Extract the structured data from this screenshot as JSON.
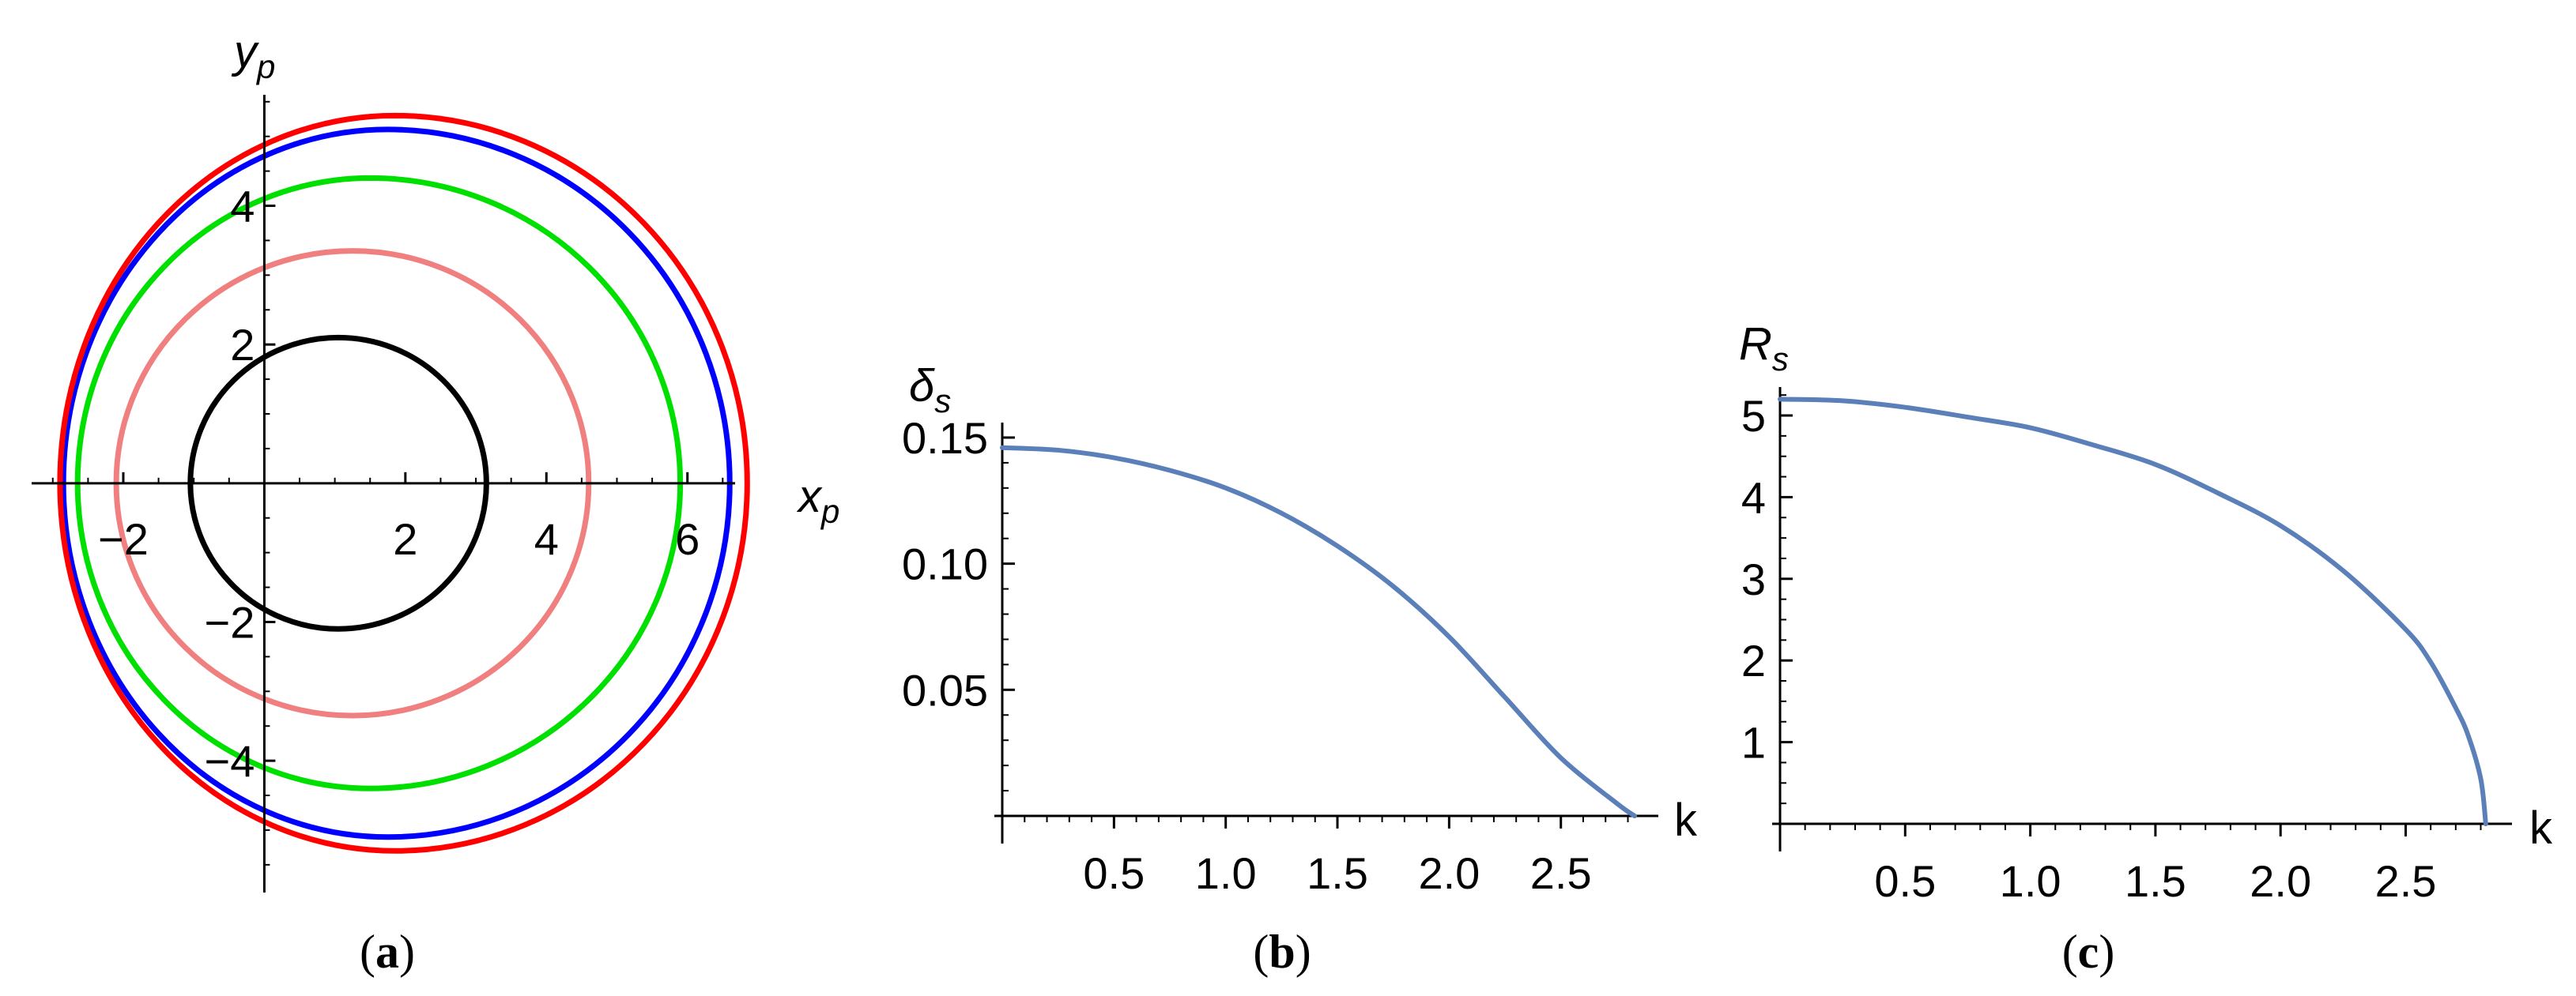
{
  "chart_data": [
    {
      "panel": "a",
      "type": "line",
      "caption": "(a)",
      "xlabel": "x",
      "xlabel_sub": "p",
      "ylabel": "y",
      "ylabel_sub": "p",
      "xlim": [
        -3.3,
        6.9
      ],
      "ylim": [
        -5.9,
        5.6
      ],
      "x_ticks": [
        {
          "v": -2,
          "label": "−2"
        },
        {
          "v": 2,
          "label": "2"
        },
        {
          "v": 4,
          "label": "4"
        },
        {
          "v": 6,
          "label": "6"
        }
      ],
      "y_ticks": [
        {
          "v": -4,
          "label": "−4"
        },
        {
          "v": -2,
          "label": "−2"
        },
        {
          "v": 2,
          "label": "2"
        },
        {
          "v": 4,
          "label": "4"
        }
      ],
      "series": [
        {
          "color": "#000000",
          "cx": 1.05,
          "r": 2.1,
          "x_left": -1.05,
          "x_right": 3.15
        },
        {
          "color": "#f08080",
          "cx": 1.25,
          "r": 3.35,
          "x_left": -2.1,
          "x_right": 4.6
        },
        {
          "color": "#00e000",
          "cx": 1.5,
          "r": 4.4,
          "x_left": -2.65,
          "x_right": 5.9
        },
        {
          "color": "#0000ff",
          "cx": 1.75,
          "r": 5.1,
          "x_left": -2.85,
          "x_right": 6.6
        },
        {
          "color": "#ff0000",
          "cx": 1.85,
          "r": 5.3,
          "x_left": -2.9,
          "x_right": 6.85
        }
      ]
    },
    {
      "panel": "b",
      "type": "line",
      "caption": "(b)",
      "xlabel": "k",
      "ylabel": "δ",
      "ylabel_sub": "s",
      "xlim": [
        0,
        2.83
      ],
      "ylim": [
        0,
        0.155
      ],
      "x_ticks": [
        {
          "v": 0.5,
          "label": "0.5"
        },
        {
          "v": 1.0,
          "label": "1.0"
        },
        {
          "v": 1.5,
          "label": "1.5"
        },
        {
          "v": 2.0,
          "label": "2.0"
        },
        {
          "v": 2.5,
          "label": "2.5"
        }
      ],
      "y_ticks": [
        {
          "v": 0.05,
          "label": "0.05"
        },
        {
          "v": 0.1,
          "label": "0.10"
        },
        {
          "v": 0.15,
          "label": "0.15"
        }
      ],
      "series": [
        {
          "color": "#5b7fb8",
          "x": [
            0,
            0.25,
            0.5,
            0.75,
            1.0,
            1.25,
            1.5,
            1.75,
            2.0,
            2.25,
            2.5,
            2.75,
            2.83
          ],
          "y": [
            0.146,
            0.145,
            0.142,
            0.137,
            0.13,
            0.12,
            0.107,
            0.091,
            0.071,
            0.047,
            0.023,
            0.005,
            0.0
          ]
        }
      ]
    },
    {
      "panel": "c",
      "type": "line",
      "caption": "(c)",
      "xlabel": "k",
      "ylabel": "R",
      "ylabel_sub": "s",
      "xlim": [
        0,
        2.83
      ],
      "ylim": [
        0,
        5.3
      ],
      "x_ticks": [
        {
          "v": 0.5,
          "label": "0.5"
        },
        {
          "v": 1.0,
          "label": "1.0"
        },
        {
          "v": 1.5,
          "label": "1.5"
        },
        {
          "v": 2.0,
          "label": "2.0"
        },
        {
          "v": 2.5,
          "label": "2.5"
        }
      ],
      "y_ticks": [
        {
          "v": 1,
          "label": "1"
        },
        {
          "v": 2,
          "label": "2"
        },
        {
          "v": 3,
          "label": "3"
        },
        {
          "v": 4,
          "label": "4"
        },
        {
          "v": 5,
          "label": "5"
        }
      ],
      "series": [
        {
          "color": "#5b7fb8",
          "x": [
            0,
            0.25,
            0.5,
            0.75,
            1.0,
            1.25,
            1.5,
            1.75,
            2.0,
            2.25,
            2.5,
            2.6,
            2.7,
            2.75,
            2.8,
            2.82
          ],
          "y": [
            5.2,
            5.18,
            5.1,
            4.98,
            4.85,
            4.64,
            4.4,
            4.05,
            3.65,
            3.1,
            2.38,
            1.98,
            1.42,
            1.08,
            0.55,
            0.0
          ]
        }
      ]
    }
  ]
}
